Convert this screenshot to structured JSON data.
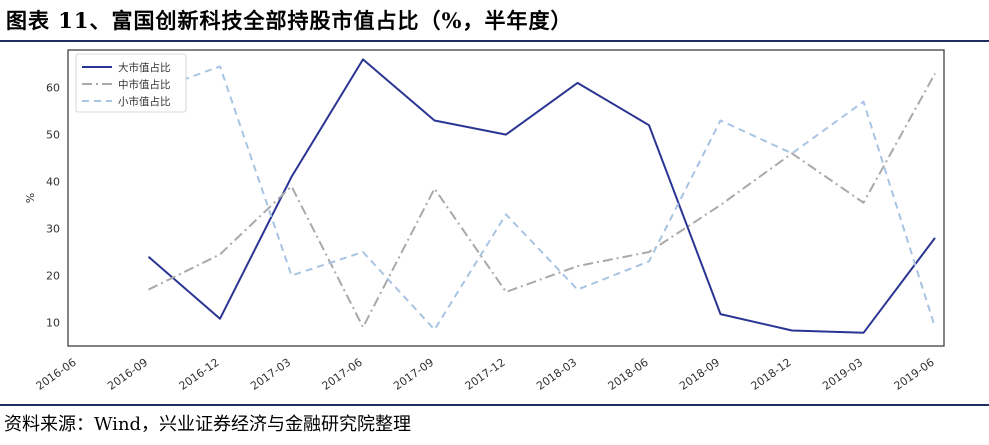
{
  "title": "图表 11、富国创新科技全部持股市值占比（%，半年度）",
  "source": "资料来源：Wind，兴业证券经济与金融研究院整理",
  "chart_data": {
    "type": "line",
    "ylabel": "%",
    "xlabel": "",
    "categories": [
      "2016-06",
      "2016-09",
      "2016-12",
      "2017-03",
      "2017-06",
      "2017-09",
      "2017-12",
      "2018-03",
      "2018-06",
      "2018-09",
      "2018-12",
      "2019-03",
      "2019-06"
    ],
    "yticks": [
      10,
      20,
      30,
      40,
      50,
      60
    ],
    "ylim": [
      5,
      68
    ],
    "legend_position": "top-left",
    "grid": false,
    "series": [
      {
        "name": "大市值占比",
        "color": "#2a3593",
        "style": "solid",
        "values": [
          null,
          24,
          10.8,
          41,
          66,
          53,
          50,
          61,
          52,
          11.8,
          8.3,
          7.8,
          28
        ]
      },
      {
        "name": "中市值占比",
        "color": "#a9a9a9",
        "style": "dashdot",
        "values": [
          null,
          17,
          24.5,
          39,
          9,
          38.5,
          16.5,
          22,
          25,
          35,
          46,
          35.5,
          63
        ]
      },
      {
        "name": "小市值占比",
        "color": "#a8c4e3",
        "style": "dashed",
        "values": [
          null,
          59,
          64.5,
          20,
          25,
          8.5,
          33,
          17,
          23,
          53,
          46,
          57,
          9
        ]
      }
    ]
  }
}
